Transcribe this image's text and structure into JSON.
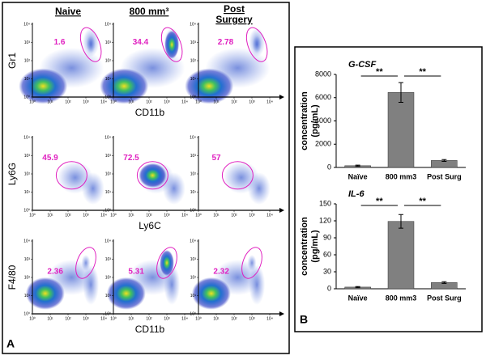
{
  "panel_a": {
    "label": "A",
    "columns": [
      "Naive",
      "800 mm³",
      "Post Surgery"
    ],
    "axis_ticks": [
      {
        "value": 0,
        "label": "10⁰"
      },
      {
        "value": 1,
        "label": "10¹"
      },
      {
        "value": 2,
        "label": "10²"
      },
      {
        "value": 3,
        "label": "10³"
      },
      {
        "value": 4,
        "label": "10⁴"
      }
    ],
    "rows": [
      {
        "y_label": "Gr1",
        "x_label": "CD11b",
        "gates": [
          1.6,
          34.4,
          2.78
        ]
      },
      {
        "y_label": "Ly6G",
        "x_label": "Ly6C",
        "gates": [
          45.9,
          72.5,
          57
        ]
      },
      {
        "y_label": "F4/80",
        "x_label": "CD11b",
        "gates": [
          2.36,
          5.31,
          2.32
        ]
      }
    ]
  },
  "panel_b": {
    "label": "B"
  },
  "chart_data": [
    {
      "type": "bar",
      "title": "G-CSF",
      "y_label": [
        "concentration",
        "(pg/mL)"
      ],
      "categories": [
        "Naïve",
        "800 mm3",
        "Post Surg"
      ],
      "values": [
        150,
        6450,
        600
      ],
      "errors": [
        50,
        850,
        80
      ],
      "color": "#808080",
      "ylim": [
        0,
        8000
      ],
      "yticks": [
        0,
        2000,
        4000,
        6000,
        8000
      ],
      "significance": [
        "**",
        "**"
      ]
    },
    {
      "type": "bar",
      "title": "IL-6",
      "y_label": [
        "concentration",
        "(pg/mL)"
      ],
      "categories": [
        "Naïve",
        "800 mm3",
        "Post Surg"
      ],
      "values": [
        3,
        119,
        11
      ],
      "errors": [
        1,
        12,
        1.5
      ],
      "color": "#808080",
      "ylim": [
        0,
        150
      ],
      "yticks": [
        0,
        30,
        60,
        90,
        120,
        150
      ],
      "significance": [
        "**",
        "**"
      ]
    }
  ]
}
